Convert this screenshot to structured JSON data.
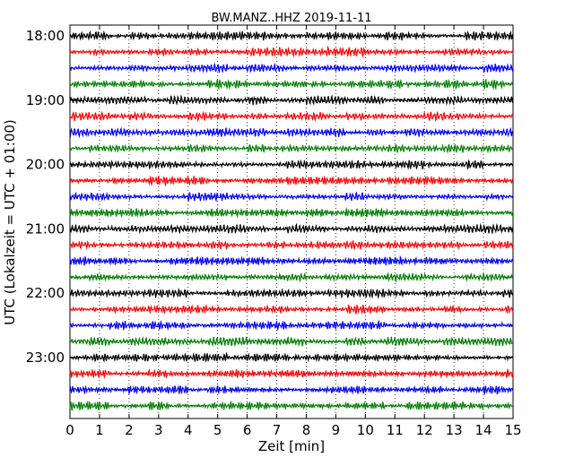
{
  "chart_data": {
    "type": "line",
    "title": "BW.MANZ..HHZ 2019-11-11",
    "xlabel": "Zeit  [min]",
    "ylabel": "UTC (Lokalzeit = UTC + 01:00)",
    "xlim": [
      0,
      15
    ],
    "x_ticks": [
      "0",
      "1",
      "2",
      "3",
      "4",
      "5",
      "6",
      "7",
      "8",
      "9",
      "10",
      "11",
      "12",
      "13",
      "14",
      "15"
    ],
    "y_ticks": [
      "18:00",
      "19:00",
      "20:00",
      "21:00",
      "22:00",
      "23:00"
    ],
    "trace_interval_minutes": 15,
    "start_hour": 18,
    "trace_count": 24,
    "trace_colors": [
      "#000000",
      "#ff0000",
      "#0000ff",
      "#008000"
    ],
    "grid": "vertical-dotted",
    "series": [
      {
        "start": "18:00"
      },
      {
        "start": "18:15"
      },
      {
        "start": "18:30"
      },
      {
        "start": "18:45"
      },
      {
        "start": "19:00"
      },
      {
        "start": "19:15"
      },
      {
        "start": "19:30"
      },
      {
        "start": "19:45"
      },
      {
        "start": "20:00"
      },
      {
        "start": "20:15"
      },
      {
        "start": "20:30"
      },
      {
        "start": "20:45"
      },
      {
        "start": "21:00"
      },
      {
        "start": "21:15"
      },
      {
        "start": "21:30"
      },
      {
        "start": "21:45"
      },
      {
        "start": "22:00"
      },
      {
        "start": "22:15"
      },
      {
        "start": "22:30"
      },
      {
        "start": "22:45"
      },
      {
        "start": "23:00"
      },
      {
        "start": "23:15"
      },
      {
        "start": "23:30"
      },
      {
        "start": "23:45"
      }
    ]
  }
}
